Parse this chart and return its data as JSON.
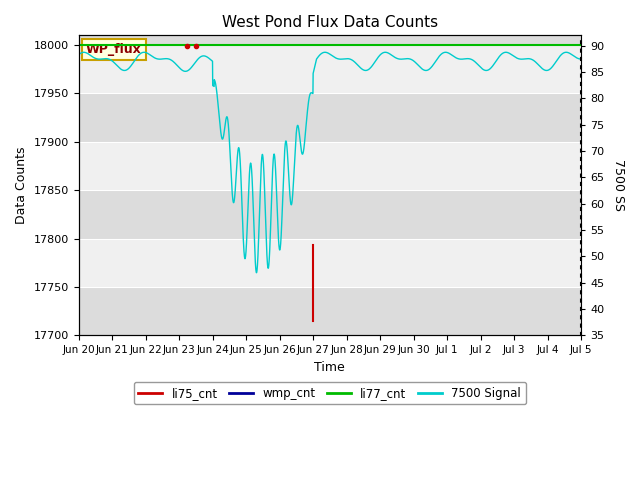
{
  "title": "West Pond Flux Data Counts",
  "xlabel": "Time",
  "ylabel": "Data Counts",
  "ylabel_right": "7500 SS",
  "ylim_left": [
    17700,
    18010
  ],
  "ylim_right": [
    35,
    92
  ],
  "yticks_left": [
    17700,
    17750,
    17800,
    17850,
    17900,
    17950,
    18000
  ],
  "yticks_right": [
    35,
    40,
    45,
    50,
    55,
    60,
    65,
    70,
    75,
    80,
    85,
    90
  ],
  "band_color_light": "#f0f0f0",
  "band_color_dark": "#dcdcdc",
  "fig_bg_color": "#ffffff",
  "legend_box_color": "#ffffe0",
  "wp_flux_box_color": "#ffffe0",
  "wp_flux_box_border": "#c8a000",
  "colors": {
    "li75_cnt": "#cc0000",
    "wmp_cnt": "#000099",
    "li77_cnt": "#00bb00",
    "signal7500": "#00cccc"
  },
  "x_tick_labels": [
    "Jun 20",
    "Jun 21",
    "Jun 22",
    "Jun 23",
    "Jun 24",
    "Jun 25",
    "Jun 26",
    "Jun 27",
    "Jun 28",
    "Jun 29",
    "Jun 30",
    "Jul 1",
    "Jul 2",
    "Jul 3",
    "Jul 4",
    "Jul 5"
  ],
  "x_tick_positions": [
    0,
    1,
    2,
    3,
    4,
    5,
    6,
    7,
    8,
    9,
    10,
    11,
    12,
    13,
    14,
    15
  ]
}
